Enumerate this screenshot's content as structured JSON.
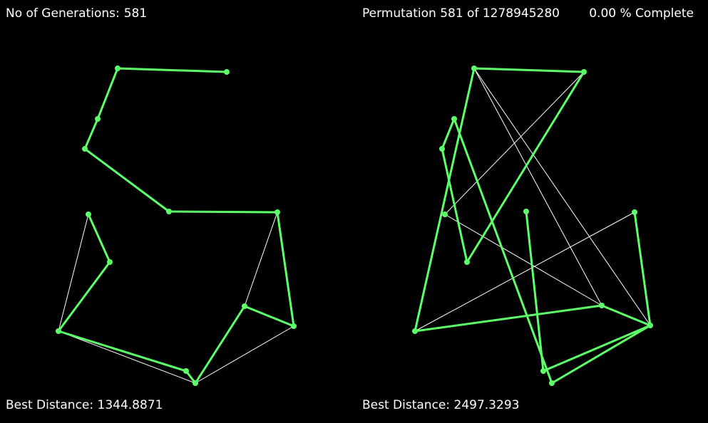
{
  "header": {
    "generations_label": "No of Generations:",
    "generations_value": "581",
    "permutation_prefix": "Permutation",
    "permutation_value": "581",
    "permutation_of": "of",
    "permutation_total": "1278945280",
    "complete_value": "0.00",
    "complete_suffix": "% Complete"
  },
  "left_panel": {
    "best_distance_label": "Best Distance:",
    "best_distance_value": "1344.8871"
  },
  "right_panel": {
    "best_distance_label": "Best Distance:",
    "best_distance_value": "2497.3293"
  },
  "colors": {
    "background": "#000000",
    "path_green": "#5cff6a",
    "candidate_white": "#ffffff",
    "text": "#ffffff"
  }
}
